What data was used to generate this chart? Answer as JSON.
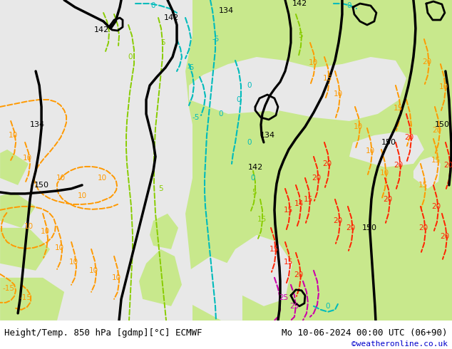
{
  "title_left": "Height/Temp. 850 hPa [gdmp][°C] ECMWF",
  "title_right": "Mo 10-06-2024 00:00 UTC (06+90)",
  "credit": "©weatheronline.co.uk",
  "fig_width": 6.34,
  "fig_height": 4.9,
  "dpi": 100,
  "bg_map": "#e8e8e8",
  "land_green": "#c8e88c",
  "land_gray": "#b4b4b4",
  "sea_gray": "#c8c8c8",
  "title_fontsize": 9.0,
  "credit_fontsize": 8.0,
  "credit_color": "#0000cc",
  "title_color": "#000000",
  "c_black": "#000000",
  "c_cyan": "#00bbbb",
  "c_green": "#88cc00",
  "c_orange": "#ff9900",
  "c_red": "#ff2200",
  "c_magenta": "#cc00aa",
  "bottom_color": "#ffffff"
}
